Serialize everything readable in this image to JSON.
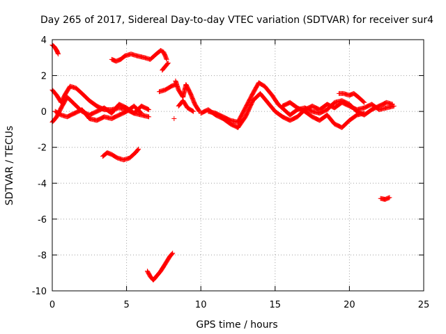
{
  "chart_data": {
    "type": "scatter",
    "title": "Day 265 of 2017, Sidereal Day-to-day VTEC variation (SDTVAR) for receiver sur4",
    "xlabel": "GPS time / hours",
    "ylabel": "SDTVAR / TECUs",
    "xlim": [
      0,
      25
    ],
    "ylim": [
      -10,
      4
    ],
    "xticks": [
      0,
      5,
      10,
      15,
      20,
      25
    ],
    "yticks": [
      4,
      2,
      0,
      -2,
      -4,
      -6,
      -8,
      -10
    ],
    "grid": true,
    "marker": "+",
    "color": "#ff0000",
    "series": [
      {
        "name": "trace-1",
        "x": [
          0.0,
          0.15,
          0.3,
          0.4
        ],
        "y": [
          3.7,
          3.6,
          3.4,
          3.2
        ]
      },
      {
        "name": "trace-2",
        "x": [
          4.0,
          4.3,
          4.6,
          4.9,
          5.3,
          5.7,
          6.2,
          6.6,
          7.0,
          7.3,
          7.5,
          7.7
        ],
        "y": [
          2.9,
          2.8,
          2.9,
          3.1,
          3.2,
          3.1,
          3.0,
          2.9,
          3.2,
          3.4,
          3.3,
          2.9
        ]
      },
      {
        "name": "trace-3",
        "x": [
          7.4,
          7.6,
          7.8
        ],
        "y": [
          2.3,
          2.5,
          2.7
        ]
      },
      {
        "name": "trace-4",
        "x": [
          7.2,
          7.6,
          8.0,
          8.3
        ],
        "y": [
          1.1,
          1.2,
          1.4,
          1.5
        ]
      },
      {
        "name": "trace-5",
        "x": [
          8.3,
          8.5,
          8.8,
          9.0,
          9.3,
          9.6,
          9.9
        ],
        "y": [
          1.7,
          1.2,
          0.8,
          1.5,
          1.0,
          0.4,
          0.0
        ]
      },
      {
        "name": "trace-6",
        "x": [
          8.5,
          8.8,
          9.1,
          9.5
        ],
        "y": [
          0.3,
          0.6,
          0.2,
          0.0
        ]
      },
      {
        "name": "trace-7",
        "x": [
          0.0,
          0.3,
          0.6,
          0.9,
          1.2,
          1.6,
          2.0,
          2.5,
          3.0,
          3.5,
          4.0,
          4.5,
          5.0,
          5.5,
          6.0,
          6.5
        ],
        "y": [
          1.2,
          0.9,
          0.5,
          1.0,
          1.4,
          1.3,
          1.0,
          0.6,
          0.3,
          0.1,
          0.1,
          0.2,
          0.1,
          -0.1,
          -0.2,
          -0.3
        ]
      },
      {
        "name": "trace-8",
        "x": [
          0.0,
          0.3,
          0.6,
          1.0,
          1.5,
          2.0,
          2.5,
          3.0,
          3.5,
          4.0,
          4.5,
          5.0,
          5.5,
          6.0,
          6.5
        ],
        "y": [
          -0.6,
          -0.3,
          0.2,
          0.8,
          0.4,
          0.0,
          -0.2,
          0.0,
          0.2,
          -0.1,
          0.4,
          0.2,
          -0.1,
          0.3,
          0.1
        ]
      },
      {
        "name": "trace-9",
        "x": [
          0.2,
          0.6,
          1.0,
          1.5,
          2.0,
          2.5,
          3.0,
          3.5,
          4.0,
          4.5,
          5.0,
          5.5,
          6.0
        ],
        "y": [
          0.0,
          -0.2,
          -0.3,
          -0.1,
          0.1,
          -0.4,
          -0.5,
          -0.3,
          -0.4,
          -0.2,
          0.0,
          0.3,
          -0.1
        ]
      },
      {
        "name": "trace-10",
        "x": [
          3.4,
          3.7,
          4.0,
          4.4,
          4.8,
          5.2,
          5.6,
          5.8
        ],
        "y": [
          -2.5,
          -2.3,
          -2.4,
          -2.6,
          -2.7,
          -2.6,
          -2.3,
          -2.1
        ]
      },
      {
        "name": "trace-11",
        "x": [
          10.0,
          10.5,
          11.0,
          11.5,
          12.0,
          12.5,
          13.0,
          13.5,
          14.0,
          14.5,
          15.0,
          15.5,
          16.0,
          16.5,
          17.0,
          17.5,
          18.0,
          18.5,
          19.0,
          19.5,
          20.0,
          20.5,
          21.0,
          21.5,
          22.0,
          22.5,
          23.0
        ],
        "y": [
          -0.1,
          0.1,
          -0.2,
          -0.4,
          -0.7,
          -0.9,
          -0.3,
          0.6,
          1.0,
          0.5,
          0.0,
          -0.3,
          -0.5,
          -0.3,
          0.1,
          0.3,
          0.1,
          0.4,
          0.2,
          0.5,
          0.3,
          0.1,
          0.2,
          0.4,
          0.1,
          0.2,
          0.3
        ]
      },
      {
        "name": "trace-12",
        "x": [
          10.5,
          11.0,
          11.5,
          12.0,
          12.5,
          13.0,
          13.5,
          13.9,
          14.3,
          14.8,
          15.2,
          15.6,
          16.0,
          16.5,
          17.0,
          17.5,
          18.0,
          18.5,
          19.0,
          19.5,
          20.0,
          20.5,
          21.0,
          21.5,
          22.0,
          22.5,
          22.9
        ],
        "y": [
          0.0,
          -0.1,
          -0.3,
          -0.5,
          -0.6,
          0.2,
          1.0,
          1.6,
          1.4,
          0.9,
          0.4,
          0.1,
          -0.2,
          0.1,
          0.2,
          0.0,
          -0.1,
          0.1,
          0.5,
          0.6,
          0.4,
          0.0,
          -0.2,
          0.1,
          0.3,
          0.5,
          0.4
        ]
      },
      {
        "name": "trace-13",
        "x": [
          15.5,
          16.0,
          16.5,
          17.0,
          17.5,
          18.0,
          18.5,
          19.0,
          19.5,
          20.0,
          20.5,
          21.0
        ],
        "y": [
          0.3,
          0.5,
          0.2,
          0.0,
          -0.3,
          -0.5,
          -0.2,
          -0.7,
          -0.9,
          -0.5,
          -0.2,
          -0.1
        ]
      },
      {
        "name": "trace-14",
        "x": [
          19.3,
          19.6,
          20.0,
          20.3,
          20.6,
          21.0
        ],
        "y": [
          1.0,
          1.0,
          0.9,
          1.0,
          0.8,
          0.5
        ]
      },
      {
        "name": "trace-15",
        "x": [
          22.1,
          22.4,
          22.7
        ],
        "y": [
          -4.85,
          -4.9,
          -4.8
        ]
      },
      {
        "name": "trace-16",
        "x": [
          6.4,
          6.6,
          6.8,
          7.0,
          7.3,
          7.6,
          7.9,
          8.1
        ],
        "y": [
          -8.9,
          -9.2,
          -9.4,
          -9.2,
          -8.9,
          -8.5,
          -8.1,
          -7.9
        ]
      },
      {
        "name": "trace-17",
        "x": [
          8.2
        ],
        "y": [
          -0.4
        ]
      }
    ]
  }
}
